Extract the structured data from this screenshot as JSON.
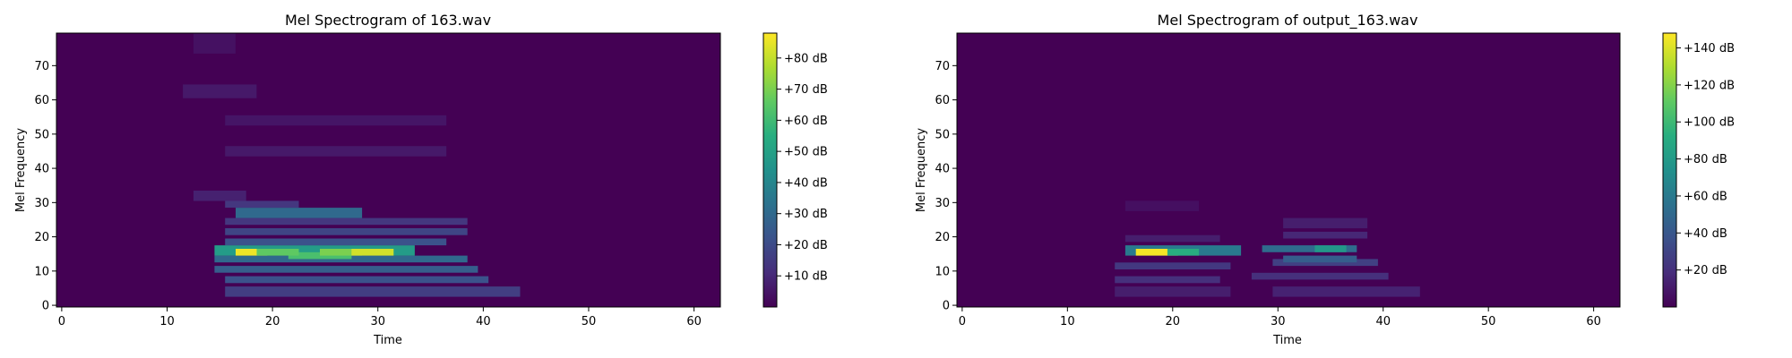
{
  "chart_data": [
    {
      "type": "heatmap",
      "title": "Mel Spectrogram of 163.wav",
      "xlabel": "Time",
      "ylabel": "Mel Frequency",
      "xlim": [
        -0.5,
        62.5
      ],
      "ylim": [
        -0.5,
        79.5
      ],
      "xticks": [
        0,
        10,
        20,
        30,
        40,
        50,
        60
      ],
      "yticks": [
        0,
        10,
        20,
        30,
        40,
        50,
        60,
        70
      ],
      "colormap": "viridis",
      "background_value_db": 0,
      "colorbar": {
        "range_db": [
          0,
          88
        ],
        "ticks": [
          10,
          20,
          30,
          40,
          50,
          60,
          70,
          80
        ],
        "tick_labels": [
          "+10 dB",
          "+20 dB",
          "+30 dB",
          "+40 dB",
          "+50 dB",
          "+60 dB",
          "+70 dB",
          "+80 dB"
        ]
      },
      "bands": [
        {
          "t_start": 16,
          "t_end": 43,
          "mel_start": 3,
          "mel_end": 5,
          "db": 16
        },
        {
          "t_start": 16,
          "t_end": 40,
          "mel_start": 7,
          "mel_end": 8,
          "db": 22
        },
        {
          "t_start": 15,
          "t_end": 39,
          "mel_start": 10,
          "mel_end": 11,
          "db": 26
        },
        {
          "t_start": 15,
          "t_end": 38,
          "mel_start": 13,
          "mel_end": 14,
          "db": 30
        },
        {
          "t_start": 15,
          "t_end": 33,
          "mel_start": 15,
          "mel_end": 17,
          "db": 48
        },
        {
          "t_start": 16,
          "t_end": 36,
          "mel_start": 18,
          "mel_end": 19,
          "db": 22
        },
        {
          "t_start": 16,
          "t_end": 38,
          "mel_start": 21,
          "mel_end": 22,
          "db": 18
        },
        {
          "t_start": 16,
          "t_end": 38,
          "mel_start": 24,
          "mel_end": 25,
          "db": 14
        },
        {
          "t_start": 17,
          "t_end": 28,
          "mel_start": 26,
          "mel_end": 28,
          "db": 30
        },
        {
          "t_start": 16,
          "t_end": 22,
          "mel_start": 29,
          "mel_end": 30,
          "db": 14
        },
        {
          "t_start": 13,
          "t_end": 17,
          "mel_start": 31,
          "mel_end": 33,
          "db": 8
        },
        {
          "t_start": 16,
          "t_end": 36,
          "mel_start": 44,
          "mel_end": 46,
          "db": 6
        },
        {
          "t_start": 16,
          "t_end": 36,
          "mel_start": 53,
          "mel_end": 55,
          "db": 5
        },
        {
          "t_start": 12,
          "t_end": 18,
          "mel_start": 61,
          "mel_end": 64,
          "db": 6
        },
        {
          "t_start": 13,
          "t_end": 16,
          "mel_start": 74,
          "mel_end": 79,
          "db": 4
        },
        {
          "t_start": 17,
          "t_end": 19,
          "mel_start": 15,
          "mel_end": 16,
          "db": 86
        },
        {
          "t_start": 22,
          "t_end": 27,
          "mel_start": 14,
          "mel_end": 15,
          "db": 62
        },
        {
          "t_start": 25,
          "t_end": 28,
          "mel_start": 15,
          "mel_end": 16,
          "db": 70
        },
        {
          "t_start": 28,
          "t_end": 31,
          "mel_start": 15,
          "mel_end": 16,
          "db": 82
        },
        {
          "t_start": 19,
          "t_end": 22,
          "mel_start": 15,
          "mel_end": 16,
          "db": 66
        }
      ]
    },
    {
      "type": "heatmap",
      "title": "Mel Spectrogram of output_163.wav",
      "xlabel": "Time",
      "ylabel": "Mel Frequency",
      "xlim": [
        -0.5,
        62.5
      ],
      "ylim": [
        -0.5,
        79.5
      ],
      "xticks": [
        0,
        10,
        20,
        30,
        40,
        50,
        60
      ],
      "yticks": [
        0,
        10,
        20,
        30,
        40,
        50,
        60,
        70
      ],
      "colormap": "viridis",
      "background_value_db": 0,
      "colorbar": {
        "range_db": [
          0,
          148
        ],
        "ticks": [
          20,
          40,
          60,
          80,
          100,
          120,
          140
        ],
        "tick_labels": [
          "+20 dB",
          "+40 dB",
          "+60 dB",
          "+80 dB",
          "+100 dB",
          "+120 dB",
          "+140 dB"
        ]
      },
      "bands": [
        {
          "t_start": 15,
          "t_end": 25,
          "mel_start": 3,
          "mel_end": 5,
          "db": 12
        },
        {
          "t_start": 30,
          "t_end": 43,
          "mel_start": 3,
          "mel_end": 5,
          "db": 14
        },
        {
          "t_start": 15,
          "t_end": 24,
          "mel_start": 7,
          "mel_end": 8,
          "db": 20
        },
        {
          "t_start": 28,
          "t_end": 40,
          "mel_start": 8,
          "mel_end": 9,
          "db": 20
        },
        {
          "t_start": 15,
          "t_end": 25,
          "mel_start": 11,
          "mel_end": 12,
          "db": 24
        },
        {
          "t_start": 30,
          "t_end": 39,
          "mel_start": 12,
          "mel_end": 13,
          "db": 28
        },
        {
          "t_start": 16,
          "t_end": 26,
          "mel_start": 15,
          "mel_end": 17,
          "db": 60
        },
        {
          "t_start": 29,
          "t_end": 37,
          "mel_start": 16,
          "mel_end": 17,
          "db": 52
        },
        {
          "t_start": 31,
          "t_end": 37,
          "mel_start": 13,
          "mel_end": 14,
          "db": 44
        },
        {
          "t_start": 16,
          "t_end": 24,
          "mel_start": 19,
          "mel_end": 20,
          "db": 12
        },
        {
          "t_start": 31,
          "t_end": 38,
          "mel_start": 20,
          "mel_end": 21,
          "db": 16
        },
        {
          "t_start": 31,
          "t_end": 38,
          "mel_start": 23,
          "mel_end": 25,
          "db": 12
        },
        {
          "t_start": 16,
          "t_end": 22,
          "mel_start": 28,
          "mel_end": 30,
          "db": 6
        },
        {
          "t_start": 17,
          "t_end": 20,
          "mel_start": 15,
          "mel_end": 16,
          "db": 146
        },
        {
          "t_start": 20,
          "t_end": 22,
          "mel_start": 15,
          "mel_end": 16,
          "db": 92
        },
        {
          "t_start": 34,
          "t_end": 36,
          "mel_start": 16,
          "mel_end": 17,
          "db": 78
        }
      ]
    }
  ]
}
